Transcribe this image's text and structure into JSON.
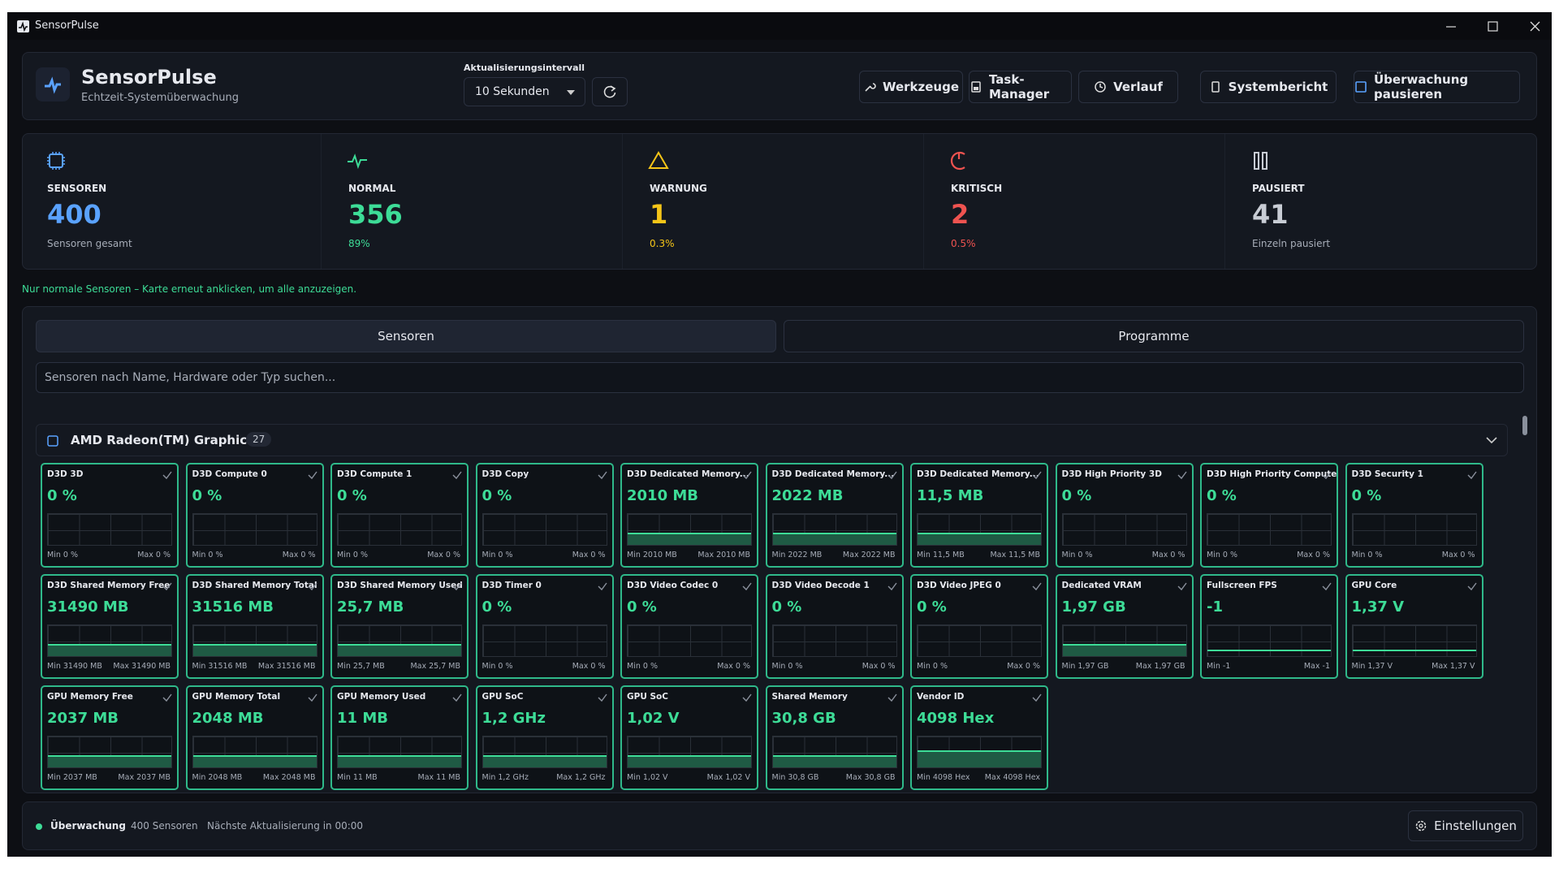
{
  "window": {
    "title": "SensorPulse"
  },
  "header": {
    "app_name": "SensorPulse",
    "subtitle": "Echtzeit-Systemüberwachung",
    "interval_label": "Aktualisierungsintervall",
    "interval_value": "10 Sekunden",
    "buttons": [
      "Werkzeuge",
      "Task-Manager",
      "Verlauf",
      "Systembericht",
      "Überwachung pausieren"
    ]
  },
  "stats": [
    {
      "label": "SENSOREN",
      "value": 400,
      "note": "Sensoren gesamt"
    },
    {
      "label": "NORMAL",
      "value": 356,
      "note": "89%"
    },
    {
      "label": "WARNUNG",
      "value": 1,
      "note": "0.3%"
    },
    {
      "label": "KRITISCH",
      "value": 2,
      "note": "0.5%"
    },
    {
      "label": "PAUSIERT",
      "value": 41,
      "note": "Einzeln pausiert"
    }
  ],
  "hint": "Nur normale Sensoren – Karte erneut anklicken, um alle anzuzeigen.",
  "tabs": [
    "Sensoren",
    "Programme"
  ],
  "search_placeholder": "Sensoren nach Name, Hardware oder Typ suchen...",
  "group": {
    "name": "AMD Radeon(TM) Graphics",
    "count": 27
  },
  "sensors": [
    {
      "name": "D3D 3D",
      "value": "0 %",
      "min": "Min 0 %",
      "max": "Max 0 %"
    },
    {
      "name": "D3D Compute 0",
      "value": "0 %",
      "min": "Min 0 %",
      "max": "Max 0 %"
    },
    {
      "name": "D3D Compute 1",
      "value": "0 %",
      "min": "Min 0 %",
      "max": "Max 0 %"
    },
    {
      "name": "D3D Copy",
      "value": "0 %",
      "min": "Min 0 %",
      "max": "Max 0 %"
    },
    {
      "name": "D3D Dedicated Memory...",
      "value": "2010 MB",
      "min": "Min 2010 MB",
      "max": "Max 2010 MB"
    },
    {
      "name": "D3D Dedicated Memory...",
      "value": "2022 MB",
      "min": "Min 2022 MB",
      "max": "Max 2022 MB"
    },
    {
      "name": "D3D Dedicated Memory...",
      "value": "11,5 MB",
      "min": "Min 11,5 MB",
      "max": "Max 11,5 MB"
    },
    {
      "name": "D3D High Priority 3D",
      "value": "0 %",
      "min": "Min 0 %",
      "max": "Max 0 %"
    },
    {
      "name": "D3D High Priority Compute",
      "value": "0 %",
      "min": "Min 0 %",
      "max": "Max 0 %"
    },
    {
      "name": "D3D Security 1",
      "value": "0 %",
      "min": "Min 0 %",
      "max": "Max 0 %"
    },
    {
      "name": "D3D Shared Memory Free",
      "value": "31490 MB",
      "min": "Min 31490 MB",
      "max": "Max 31490 MB"
    },
    {
      "name": "D3D Shared Memory Total",
      "value": "31516 MB",
      "min": "Min 31516 MB",
      "max": "Max 31516 MB"
    },
    {
      "name": "D3D Shared Memory Used",
      "value": "25,7 MB",
      "min": "Min 25,7 MB",
      "max": "Max 25,7 MB"
    },
    {
      "name": "D3D Timer 0",
      "value": "0 %",
      "min": "Min 0 %",
      "max": "Max 0 %"
    },
    {
      "name": "D3D Video Codec 0",
      "value": "0 %",
      "min": "Min 0 %",
      "max": "Max 0 %"
    },
    {
      "name": "D3D Video Decode 1",
      "value": "0 %",
      "min": "Min 0 %",
      "max": "Max 0 %"
    },
    {
      "name": "D3D Video JPEG 0",
      "value": "0 %",
      "min": "Min 0 %",
      "max": "Max 0 %"
    },
    {
      "name": "Dedicated VRAM",
      "value": "1,97 GB",
      "min": "Min 1,97 GB",
      "max": "Max 1,97 GB"
    },
    {
      "name": "Fullscreen FPS",
      "value": "-1",
      "min": "Min -1",
      "max": "Max -1"
    },
    {
      "name": "GPU Core",
      "value": "1,37 V",
      "min": "Min 1,37 V",
      "max": "Max 1,37 V"
    },
    {
      "name": "GPU Memory Free",
      "value": "2037 MB",
      "min": "Min 2037 MB",
      "max": "Max 2037 MB"
    },
    {
      "name": "GPU Memory Total",
      "value": "2048 MB",
      "min": "Min 2048 MB",
      "max": "Max 2048 MB"
    },
    {
      "name": "GPU Memory Used",
      "value": "11 MB",
      "min": "Min 11 MB",
      "max": "Max 11 MB"
    },
    {
      "name": "GPU SoC",
      "value": "1,2 GHz",
      "min": "Min 1,2 GHz",
      "max": "Max 1,2 GHz"
    },
    {
      "name": "GPU SoC",
      "value": "1,02 V",
      "min": "Min 1,02 V",
      "max": "Max 1,02 V"
    },
    {
      "name": "Shared Memory",
      "value": "30,8 GB",
      "min": "Min 30,8 GB",
      "max": "Max 30,8 GB"
    },
    {
      "name": "Vendor ID",
      "value": "4098 Hex",
      "min": "Min 4098 Hex",
      "max": "Max 4098 Hex"
    }
  ],
  "footer": {
    "status": "Überwachung",
    "sensor_count": "400 Sensoren",
    "next_update": "Nächste Aktualisierung in 00:00",
    "settings": "Einstellungen"
  }
}
